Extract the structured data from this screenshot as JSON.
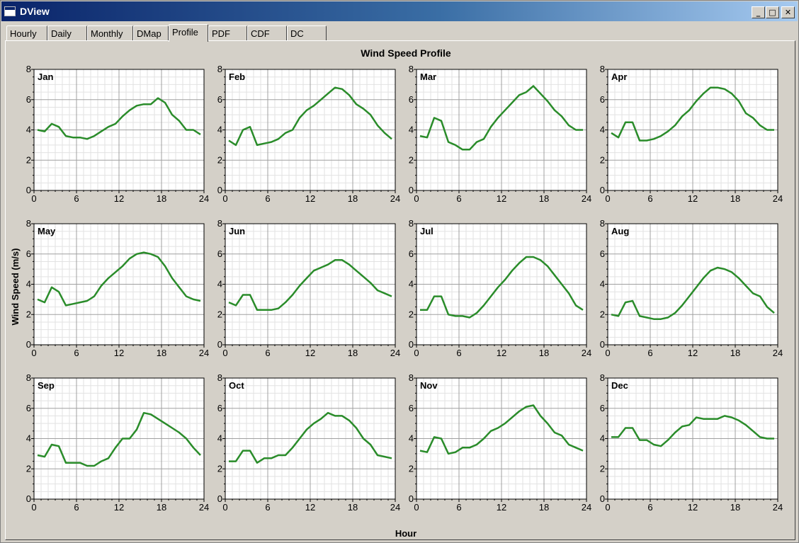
{
  "window": {
    "title": "DView",
    "minimize_glyph": "_",
    "maximize_glyph": "□",
    "close_glyph": "✕"
  },
  "tabs": [
    {
      "label": "Hourly",
      "active": false
    },
    {
      "label": "Daily",
      "active": false
    },
    {
      "label": "Monthly",
      "active": false
    },
    {
      "label": "DMap",
      "active": false
    },
    {
      "label": "Profile",
      "active": true
    },
    {
      "label": "PDF",
      "active": false
    },
    {
      "label": "CDF",
      "active": false
    },
    {
      "label": "DC",
      "active": false
    }
  ],
  "colors": {
    "line": "#2a8c2a",
    "grid_major": "#a0a0a0",
    "grid_minor": "#e2e2e2",
    "panel_bg": "#d4d0c8",
    "plot_bg": "#ffffff"
  },
  "chart_data": {
    "type": "line",
    "title": "Wind Speed Profile",
    "xlabel": "Hour",
    "ylabel": "Wind Speed (m/s)",
    "xlim": [
      0,
      24
    ],
    "ylim": [
      0,
      8
    ],
    "xticks": [
      0,
      6,
      12,
      18,
      24
    ],
    "yticks": [
      0,
      2,
      4,
      6,
      8
    ],
    "grid": true,
    "x": [
      0,
      1,
      2,
      3,
      4,
      5,
      6,
      7,
      8,
      9,
      10,
      11,
      12,
      13,
      14,
      15,
      16,
      17,
      18,
      19,
      20,
      21,
      22,
      23
    ],
    "panels": [
      {
        "name": "Jan",
        "values": [
          4.0,
          3.9,
          4.4,
          4.2,
          3.6,
          3.5,
          3.5,
          3.4,
          3.6,
          3.9,
          4.2,
          4.4,
          4.9,
          5.3,
          5.6,
          5.7,
          5.7,
          6.1,
          5.8,
          5.0,
          4.6,
          4.0,
          4.0,
          3.7
        ]
      },
      {
        "name": "Feb",
        "values": [
          3.3,
          3.0,
          4.0,
          4.2,
          3.0,
          3.1,
          3.2,
          3.4,
          3.8,
          4.0,
          4.8,
          5.3,
          5.6,
          6.0,
          6.4,
          6.8,
          6.7,
          6.3,
          5.7,
          5.4,
          5.0,
          4.3,
          3.8,
          3.4
        ]
      },
      {
        "name": "Mar",
        "values": [
          3.6,
          3.5,
          4.8,
          4.6,
          3.2,
          3.0,
          2.7,
          2.7,
          3.2,
          3.4,
          4.2,
          4.8,
          5.3,
          5.8,
          6.3,
          6.5,
          6.9,
          6.4,
          5.9,
          5.3,
          4.9,
          4.3,
          4.0,
          4.0
        ]
      },
      {
        "name": "Apr",
        "values": [
          3.8,
          3.5,
          4.5,
          4.5,
          3.3,
          3.3,
          3.4,
          3.6,
          3.9,
          4.3,
          4.9,
          5.3,
          5.9,
          6.4,
          6.8,
          6.8,
          6.7,
          6.4,
          5.9,
          5.1,
          4.8,
          4.3,
          4.0,
          4.0
        ]
      },
      {
        "name": "May",
        "values": [
          3.0,
          2.8,
          3.8,
          3.5,
          2.6,
          2.7,
          2.8,
          2.9,
          3.2,
          3.9,
          4.4,
          4.8,
          5.2,
          5.7,
          6.0,
          6.1,
          6.0,
          5.8,
          5.2,
          4.4,
          3.8,
          3.2,
          3.0,
          2.9
        ]
      },
      {
        "name": "Jun",
        "values": [
          2.8,
          2.6,
          3.3,
          3.3,
          2.3,
          2.3,
          2.3,
          2.4,
          2.8,
          3.3,
          3.9,
          4.4,
          4.9,
          5.1,
          5.3,
          5.6,
          5.6,
          5.3,
          4.9,
          4.5,
          4.1,
          3.6,
          3.4,
          3.2
        ]
      },
      {
        "name": "Jul",
        "values": [
          2.3,
          2.3,
          3.2,
          3.2,
          2.0,
          1.9,
          1.9,
          1.8,
          2.1,
          2.6,
          3.2,
          3.8,
          4.3,
          4.9,
          5.4,
          5.8,
          5.8,
          5.6,
          5.2,
          4.6,
          4.0,
          3.4,
          2.6,
          2.3
        ]
      },
      {
        "name": "Aug",
        "values": [
          2.0,
          1.9,
          2.8,
          2.9,
          1.9,
          1.8,
          1.7,
          1.7,
          1.8,
          2.1,
          2.6,
          3.2,
          3.8,
          4.4,
          4.9,
          5.1,
          5.0,
          4.8,
          4.4,
          3.9,
          3.4,
          3.2,
          2.5,
          2.1
        ]
      },
      {
        "name": "Sep",
        "values": [
          2.9,
          2.8,
          3.6,
          3.5,
          2.4,
          2.4,
          2.4,
          2.2,
          2.2,
          2.5,
          2.7,
          3.4,
          4.0,
          4.0,
          4.6,
          5.7,
          5.6,
          5.3,
          5.0,
          4.7,
          4.4,
          4.0,
          3.4,
          2.9
        ]
      },
      {
        "name": "Oct",
        "values": [
          2.5,
          2.5,
          3.2,
          3.2,
          2.4,
          2.7,
          2.7,
          2.9,
          2.9,
          3.4,
          4.0,
          4.6,
          5.0,
          5.3,
          5.7,
          5.5,
          5.5,
          5.2,
          4.7,
          4.0,
          3.6,
          2.9,
          2.8,
          2.7
        ]
      },
      {
        "name": "Nov",
        "values": [
          3.2,
          3.1,
          4.1,
          4.0,
          3.0,
          3.1,
          3.4,
          3.4,
          3.6,
          4.0,
          4.5,
          4.7,
          5.0,
          5.4,
          5.8,
          6.1,
          6.2,
          5.5,
          5.0,
          4.4,
          4.2,
          3.6,
          3.4,
          3.2
        ]
      },
      {
        "name": "Dec",
        "values": [
          4.1,
          4.1,
          4.7,
          4.7,
          3.9,
          3.9,
          3.6,
          3.5,
          3.9,
          4.4,
          4.8,
          4.9,
          5.4,
          5.3,
          5.3,
          5.3,
          5.5,
          5.4,
          5.2,
          4.9,
          4.5,
          4.1,
          4.0,
          4.0
        ]
      }
    ]
  }
}
